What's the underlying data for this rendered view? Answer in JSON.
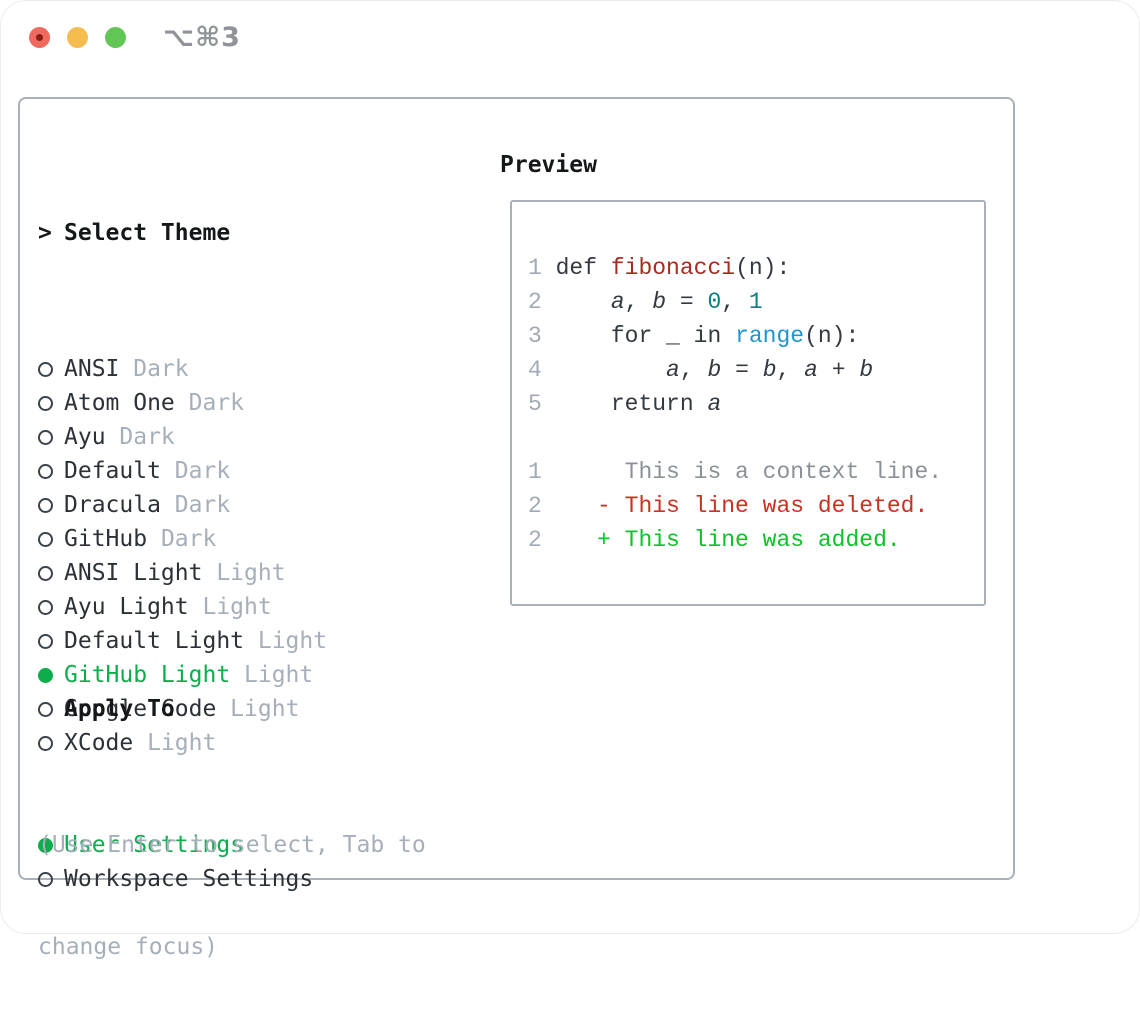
{
  "window": {
    "title": "⌥⌘3",
    "traffic_lights": [
      {
        "name": "close",
        "has_unsaved_dot": true
      },
      {
        "name": "minimize"
      },
      {
        "name": "zoom"
      }
    ]
  },
  "theme_picker": {
    "header": {
      "marker": ">",
      "label": "Select Theme"
    },
    "themes": [
      {
        "name": "ANSI",
        "variant": "Dark",
        "selected": false
      },
      {
        "name": "Atom One",
        "variant": "Dark",
        "selected": false
      },
      {
        "name": "Ayu",
        "variant": "Dark",
        "selected": false
      },
      {
        "name": "Default",
        "variant": "Dark",
        "selected": false
      },
      {
        "name": "Dracula",
        "variant": "Dark",
        "selected": false
      },
      {
        "name": "GitHub",
        "variant": "Dark",
        "selected": false
      },
      {
        "name": "ANSI Light",
        "variant": "Light",
        "selected": false
      },
      {
        "name": "Ayu Light",
        "variant": "Light",
        "selected": false
      },
      {
        "name": "Default Light",
        "variant": "Light",
        "selected": false
      },
      {
        "name": "GitHub Light",
        "variant": "Light",
        "selected": true
      },
      {
        "name": "Google Code",
        "variant": "Light",
        "selected": false
      },
      {
        "name": "XCode",
        "variant": "Light",
        "selected": false
      }
    ],
    "apply_to": {
      "label": "Apply To",
      "options": [
        {
          "name": "User Settings",
          "selected": true
        },
        {
          "name": "Workspace Settings",
          "selected": false
        }
      ]
    },
    "hint_lines": [
      "(Use Enter to select, Tab to",
      "change focus)"
    ]
  },
  "preview": {
    "label": "Preview",
    "lines": [
      {
        "num": "1",
        "segs": [
          {
            "t": " ",
            "c": "fg"
          },
          {
            "t": "def ",
            "c": "fg"
          },
          {
            "t": "fibonacci",
            "c": "red"
          },
          {
            "t": "(n):",
            "c": "fg"
          }
        ]
      },
      {
        "num": "2",
        "segs": [
          {
            "t": " ",
            "c": "fg"
          },
          {
            "t": "    ",
            "c": "fg"
          },
          {
            "t": "a",
            "c": "var"
          },
          {
            "t": ", ",
            "c": "fg"
          },
          {
            "t": "b",
            "c": "var"
          },
          {
            "t": " = ",
            "c": "fg"
          },
          {
            "t": "0",
            "c": "num"
          },
          {
            "t": ", ",
            "c": "fg"
          },
          {
            "t": "1",
            "c": "num"
          }
        ]
      },
      {
        "num": "3",
        "segs": [
          {
            "t": " ",
            "c": "fg"
          },
          {
            "t": "    for _ in ",
            "c": "fg"
          },
          {
            "t": "range",
            "c": "blue"
          },
          {
            "t": "(n):",
            "c": "fg"
          }
        ]
      },
      {
        "num": "4",
        "segs": [
          {
            "t": " ",
            "c": "fg"
          },
          {
            "t": "        ",
            "c": "fg"
          },
          {
            "t": "a",
            "c": "var"
          },
          {
            "t": ", ",
            "c": "fg"
          },
          {
            "t": "b",
            "c": "var"
          },
          {
            "t": " = ",
            "c": "fg"
          },
          {
            "t": "b",
            "c": "var"
          },
          {
            "t": ", ",
            "c": "fg"
          },
          {
            "t": "a",
            "c": "var"
          },
          {
            "t": " + ",
            "c": "fg"
          },
          {
            "t": "b",
            "c": "var"
          }
        ]
      },
      {
        "num": "5",
        "segs": [
          {
            "t": " ",
            "c": "fg"
          },
          {
            "t": "    return ",
            "c": "fg"
          },
          {
            "t": "a",
            "c": "var"
          }
        ]
      },
      {
        "num": "",
        "segs": []
      },
      {
        "num": "1",
        "segs": [
          {
            "t": "      ",
            "c": "fg"
          },
          {
            "t": "This is a context line.",
            "c": "ctx"
          }
        ]
      },
      {
        "num": "2",
        "segs": [
          {
            "t": "    ",
            "c": "fg"
          },
          {
            "t": "- This line was deleted.",
            "c": "del"
          }
        ]
      },
      {
        "num": "2",
        "segs": [
          {
            "t": "    ",
            "c": "fg"
          },
          {
            "t": "+ This line was added.",
            "c": "add"
          }
        ]
      }
    ]
  },
  "colors": {
    "panel_border": "#a9b0ba",
    "selection_green": "#0cad4a",
    "diff_added_green": "#0dc226",
    "diff_deleted_red": "#c93222",
    "function_red": "#a62c21",
    "number_teal": "#0c7f81",
    "builtin_blue": "#1d95d0",
    "muted_gray": "#a6afb9",
    "traffic_red": "#ee6a5f",
    "traffic_yellow": "#f5bd4f",
    "traffic_green": "#61c653"
  }
}
